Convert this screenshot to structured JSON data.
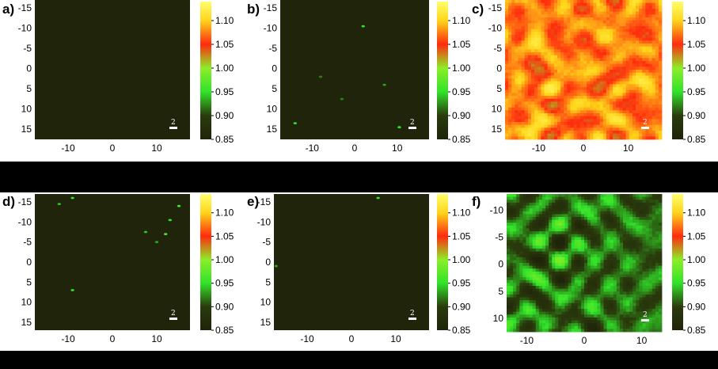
{
  "colors": {
    "figure_background": "#000000",
    "panel_background": "#ffffff",
    "heatmap_base": "#1f240a"
  },
  "colormap": [
    {
      "value": 0.85,
      "color": "#1f240a"
    },
    {
      "value": 0.9,
      "color": "#2a3b0c"
    },
    {
      "value": 0.95,
      "color": "#31e22a"
    },
    {
      "value": 1.0,
      "color": "#8cee28"
    },
    {
      "value": 1.05,
      "color": "#ff2b0e"
    },
    {
      "value": 1.1,
      "color": "#ffd51a"
    },
    {
      "value": 1.14,
      "color": "#ffff6b"
    }
  ],
  "chart_data": [
    {
      "type": "heatmap",
      "panel_label": "a)",
      "pattern": "flat",
      "xticks": [
        "-10",
        "0",
        "10"
      ],
      "yticks": [
        "-15",
        "-10",
        "-5",
        "0",
        "5",
        "10",
        "15"
      ],
      "colorbar_ticks": [
        "1.10",
        "1.05",
        "1.00",
        "0.95",
        "0.90",
        "0.85"
      ],
      "colorbar_range": [
        0.85,
        1.14
      ],
      "scale_bar_label": "2",
      "spots": []
    },
    {
      "type": "heatmap",
      "panel_label": "b)",
      "pattern": "sparse",
      "xticks": [
        "-10",
        "0",
        "10"
      ],
      "yticks": [
        "-15",
        "-10",
        "-5",
        "0",
        "5",
        "10",
        "15"
      ],
      "colorbar_ticks": [
        "1.10",
        "1.05",
        "1.00",
        "0.95",
        "0.90",
        "0.85"
      ],
      "colorbar_range": [
        0.85,
        1.14
      ],
      "scale_bar_label": "2",
      "spots": [
        {
          "x": 2,
          "y": -10.5,
          "value": 0.95
        },
        {
          "x": -14,
          "y": 13.5,
          "value": 0.95
        },
        {
          "x": 10.5,
          "y": 14.5,
          "value": 0.95
        },
        {
          "x": 7,
          "y": 4,
          "value": 0.93
        },
        {
          "x": -8,
          "y": 2,
          "value": 0.92
        },
        {
          "x": -3,
          "y": 7.5,
          "value": 0.92
        }
      ]
    },
    {
      "type": "heatmap",
      "panel_label": "c)",
      "pattern": "dense-high",
      "xticks": [
        "-10",
        "0",
        "10"
      ],
      "yticks": [
        "-15",
        "-10",
        "-5",
        "0",
        "5",
        "10",
        "15"
      ],
      "colorbar_ticks": [
        "1.10",
        "1.05",
        "1.00",
        "0.95",
        "0.90",
        "0.85"
      ],
      "colorbar_range": [
        0.85,
        1.14
      ],
      "scale_bar_label": "2",
      "spots": []
    },
    {
      "type": "heatmap",
      "panel_label": "d)",
      "pattern": "sparse",
      "xticks": [
        "-10",
        "0",
        "10"
      ],
      "yticks": [
        "-15",
        "-10",
        "-5",
        "0",
        "5",
        "10",
        "15"
      ],
      "colorbar_ticks": [
        "1.10",
        "1.05",
        "1.00",
        "0.95",
        "0.90",
        "0.85"
      ],
      "colorbar_range": [
        0.85,
        1.14
      ],
      "scale_bar_label": "2",
      "spots": [
        {
          "x": -9,
          "y": -16,
          "value": 0.95
        },
        {
          "x": -12,
          "y": -14.5,
          "value": 0.94
        },
        {
          "x": 15,
          "y": -14,
          "value": 0.96
        },
        {
          "x": 13,
          "y": -10.5,
          "value": 0.95
        },
        {
          "x": 12,
          "y": -7,
          "value": 0.97
        },
        {
          "x": 7.5,
          "y": -7.5,
          "value": 0.94
        },
        {
          "x": 10,
          "y": -5,
          "value": 0.93
        },
        {
          "x": -9,
          "y": 7,
          "value": 0.95
        }
      ]
    },
    {
      "type": "heatmap",
      "panel_label": "e)",
      "pattern": "sparse",
      "xticks": [
        "-10",
        "0",
        "10"
      ],
      "yticks": [
        "-15",
        "-10",
        "-5",
        "0",
        "5",
        "10",
        "15"
      ],
      "colorbar_ticks": [
        "1.10",
        "1.05",
        "1.00",
        "0.95",
        "0.90",
        "0.85"
      ],
      "colorbar_range": [
        0.85,
        1.14
      ],
      "scale_bar_label": "2",
      "spots": [
        {
          "x": 6,
          "y": -16,
          "value": 0.95
        },
        {
          "x": -17,
          "y": 1,
          "value": 0.93
        }
      ]
    },
    {
      "type": "heatmap",
      "panel_label": "f)",
      "pattern": "dense-green",
      "xticks": [
        "-10",
        "0",
        "10"
      ],
      "yticks": [
        "-10",
        "-5",
        "0",
        "5",
        "10"
      ],
      "colorbar_ticks": [
        "1.10",
        "1.05",
        "1.00",
        "0.95",
        "0.90",
        "0.85"
      ],
      "colorbar_range": [
        0.85,
        1.14
      ],
      "scale_bar_label": "2",
      "spots": []
    }
  ]
}
